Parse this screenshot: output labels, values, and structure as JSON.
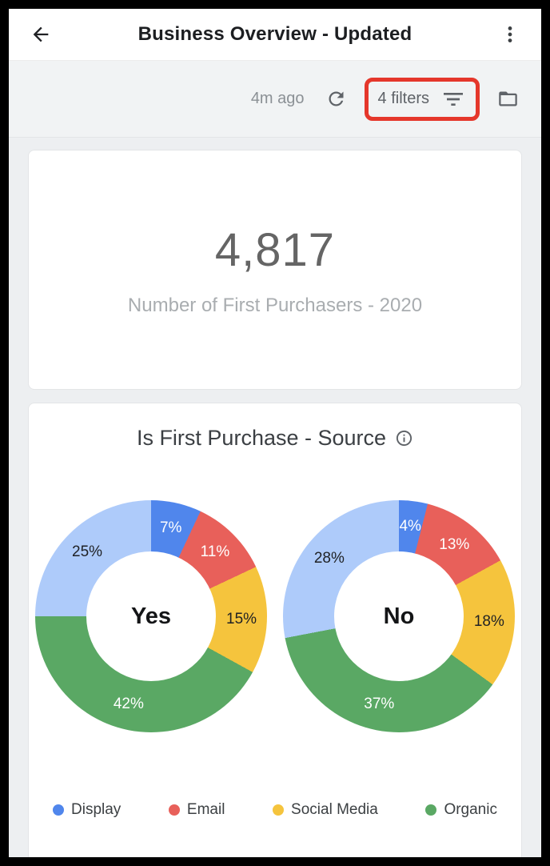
{
  "app_bar": {
    "title": "Business Overview - Updated",
    "back_icon": "arrow-left",
    "menu_icon": "kebab-vertical-menu"
  },
  "toolbar": {
    "last_updated": "4m ago",
    "refresh_icon": "refresh",
    "filters": {
      "label": "4 filters",
      "icon": "filter-list"
    },
    "folder_icon": "folder",
    "annotation": {
      "shape": "red-rectangle-highlight",
      "color": "#e5372b"
    }
  },
  "scorecard": {
    "value": "4,817",
    "label": "Number of First Purchasers - 2020"
  },
  "chart_data": {
    "type": "pie",
    "subtype": "donut-pair",
    "title": "Is First Purchase - Source",
    "legend_position": "bottom",
    "segment_colors": [
      "#5086ec",
      "#e8605a",
      "#f5c43d",
      "#5aa864",
      "#aecbfa"
    ],
    "segment_label_colors": [
      "#ffffff",
      "#ffffff",
      "#1f2124",
      "#ffffff",
      "#1f2124"
    ],
    "donuts": [
      {
        "center_label": "Yes",
        "values": [
          7,
          11,
          15,
          42,
          25
        ],
        "value_labels": [
          "7%",
          "11%",
          "15%",
          "42%",
          "25%"
        ]
      },
      {
        "center_label": "No",
        "values": [
          4,
          13,
          18,
          37,
          28
        ],
        "value_labels": [
          "4%",
          "13%",
          "18%",
          "37%",
          "28%"
        ]
      }
    ],
    "legend": [
      {
        "label": "Display",
        "color": "#5086ec"
      },
      {
        "label": "Email",
        "color": "#e8605a"
      },
      {
        "label": "Social Media",
        "color": "#f5c43d"
      },
      {
        "label": "Organic",
        "color": "#5aa864"
      }
    ]
  }
}
